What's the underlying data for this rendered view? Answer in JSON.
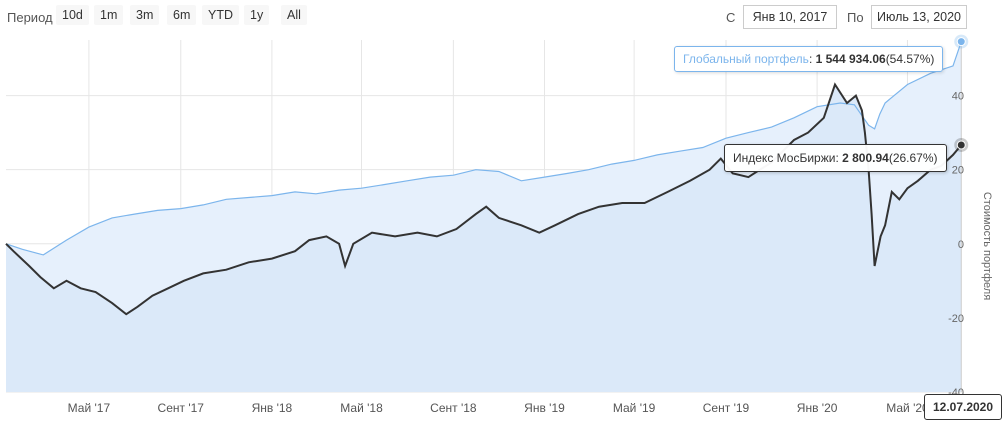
{
  "toolbar": {
    "period_label": "Период",
    "zoom_buttons": [
      "10d",
      "1m",
      "3m",
      "6m",
      "YTD",
      "1y",
      "All"
    ],
    "from_label": "С",
    "from_value": "Янв 10, 2017",
    "to_label": "По",
    "to_value": "Июль 13, 2020"
  },
  "tooltips": {
    "portfolio_name": "Глобальный портфель",
    "portfolio_value": "1 544 934.06",
    "portfolio_pct": "(54.57%)",
    "index_name": "Индекс МосБиржи",
    "index_value": "2 800.94",
    "index_pct": "(26.67%)",
    "date_flag": "12.07.2020"
  },
  "colors": {
    "portfolio": "#7cb5ec",
    "index": "#333333",
    "area_fill": "#dbe9f9",
    "grid": "#e6e6e6"
  },
  "chart_data": {
    "type": "area",
    "title": "",
    "xlabel": "",
    "ylabel": "Стоимость портфеля",
    "x_ticks": [
      "Май '17",
      "Сент '17",
      "Янв '18",
      "Май '18",
      "Сент '18",
      "Янв '19",
      "Май '19",
      "Сент '19",
      "Янв '20",
      "Май '20"
    ],
    "y_ticks": [
      -40,
      -20,
      0,
      20,
      40
    ],
    "ylim": [
      -40,
      55
    ],
    "xlim": [
      "2017-01-10",
      "2020-07-13"
    ],
    "grid": true,
    "series": [
      {
        "name": "Глобальный портфель",
        "points": [
          [
            "2017-01-10",
            0
          ],
          [
            "2017-02-01",
            -1.5
          ],
          [
            "2017-03-01",
            -3
          ],
          [
            "2017-04-01",
            1
          ],
          [
            "2017-05-01",
            4.5
          ],
          [
            "2017-06-01",
            7
          ],
          [
            "2017-07-01",
            8
          ],
          [
            "2017-08-01",
            9
          ],
          [
            "2017-09-01",
            9.5
          ],
          [
            "2017-10-01",
            10.5
          ],
          [
            "2017-11-01",
            12
          ],
          [
            "2017-12-01",
            12.5
          ],
          [
            "2018-01-01",
            13
          ],
          [
            "2018-02-01",
            14
          ],
          [
            "2018-03-01",
            13.5
          ],
          [
            "2018-04-01",
            14.5
          ],
          [
            "2018-05-01",
            15
          ],
          [
            "2018-06-01",
            16
          ],
          [
            "2018-07-01",
            17
          ],
          [
            "2018-08-01",
            18
          ],
          [
            "2018-09-01",
            18.5
          ],
          [
            "2018-10-01",
            20
          ],
          [
            "2018-11-01",
            19.5
          ],
          [
            "2018-12-01",
            17
          ],
          [
            "2019-01-01",
            18
          ],
          [
            "2019-02-01",
            19
          ],
          [
            "2019-03-01",
            20
          ],
          [
            "2019-04-01",
            21.5
          ],
          [
            "2019-05-01",
            22.5
          ],
          [
            "2019-06-01",
            24
          ],
          [
            "2019-07-01",
            25
          ],
          [
            "2019-08-01",
            26
          ],
          [
            "2019-09-01",
            28.5
          ],
          [
            "2019-10-01",
            30
          ],
          [
            "2019-11-01",
            31.5
          ],
          [
            "2019-12-01",
            34
          ],
          [
            "2020-01-01",
            37
          ],
          [
            "2020-02-01",
            38
          ],
          [
            "2020-02-20",
            37.5
          ],
          [
            "2020-03-10",
            32
          ],
          [
            "2020-03-18",
            31
          ],
          [
            "2020-03-25",
            35
          ],
          [
            "2020-04-01",
            38
          ],
          [
            "2020-05-01",
            43
          ],
          [
            "2020-06-01",
            46
          ],
          [
            "2020-07-01",
            48
          ],
          [
            "2020-07-12",
            54.57
          ]
        ]
      },
      {
        "name": "Индекс МосБиржи",
        "points": [
          [
            "2017-01-10",
            0
          ],
          [
            "2017-01-20",
            -2
          ],
          [
            "2017-02-10",
            -6
          ],
          [
            "2017-02-25",
            -9
          ],
          [
            "2017-03-15",
            -12
          ],
          [
            "2017-04-01",
            -10
          ],
          [
            "2017-04-20",
            -12
          ],
          [
            "2017-05-10",
            -13
          ],
          [
            "2017-06-01",
            -16
          ],
          [
            "2017-06-20",
            -19
          ],
          [
            "2017-07-05",
            -17
          ],
          [
            "2017-07-25",
            -14
          ],
          [
            "2017-08-15",
            -12
          ],
          [
            "2017-09-05",
            -10
          ],
          [
            "2017-10-01",
            -8
          ],
          [
            "2017-11-01",
            -7
          ],
          [
            "2017-12-01",
            -5
          ],
          [
            "2018-01-01",
            -4
          ],
          [
            "2018-02-01",
            -2
          ],
          [
            "2018-02-20",
            1
          ],
          [
            "2018-03-15",
            2
          ],
          [
            "2018-04-01",
            0
          ],
          [
            "2018-04-09",
            -6
          ],
          [
            "2018-04-20",
            0
          ],
          [
            "2018-05-15",
            3
          ],
          [
            "2018-06-15",
            2
          ],
          [
            "2018-07-15",
            3
          ],
          [
            "2018-08-10",
            2
          ],
          [
            "2018-09-05",
            4
          ],
          [
            "2018-10-01",
            8
          ],
          [
            "2018-10-15",
            10
          ],
          [
            "2018-11-01",
            7
          ],
          [
            "2018-12-01",
            5
          ],
          [
            "2018-12-25",
            3
          ],
          [
            "2019-01-15",
            5
          ],
          [
            "2019-02-15",
            8
          ],
          [
            "2019-03-15",
            10
          ],
          [
            "2019-04-15",
            11
          ],
          [
            "2019-05-15",
            11
          ],
          [
            "2019-06-15",
            14
          ],
          [
            "2019-07-15",
            17
          ],
          [
            "2019-08-10",
            20
          ],
          [
            "2019-08-25",
            23
          ],
          [
            "2019-09-10",
            19
          ],
          [
            "2019-10-01",
            18
          ],
          [
            "2019-11-01",
            22
          ],
          [
            "2019-12-01",
            28
          ],
          [
            "2019-12-20",
            30
          ],
          [
            "2020-01-10",
            34
          ],
          [
            "2020-01-25",
            43
          ],
          [
            "2020-02-10",
            38
          ],
          [
            "2020-02-22",
            40
          ],
          [
            "2020-03-01",
            36
          ],
          [
            "2020-03-05",
            30
          ],
          [
            "2020-03-10",
            20
          ],
          [
            "2020-03-14",
            8
          ],
          [
            "2020-03-18",
            -6
          ],
          [
            "2020-03-22",
            -2
          ],
          [
            "2020-03-26",
            2
          ],
          [
            "2020-04-01",
            5
          ],
          [
            "2020-04-10",
            14
          ],
          [
            "2020-04-20",
            12
          ],
          [
            "2020-05-01",
            15
          ],
          [
            "2020-05-15",
            17
          ],
          [
            "2020-06-01",
            20
          ],
          [
            "2020-06-15",
            21
          ],
          [
            "2020-07-01",
            24
          ],
          [
            "2020-07-12",
            26.67
          ]
        ]
      }
    ]
  }
}
